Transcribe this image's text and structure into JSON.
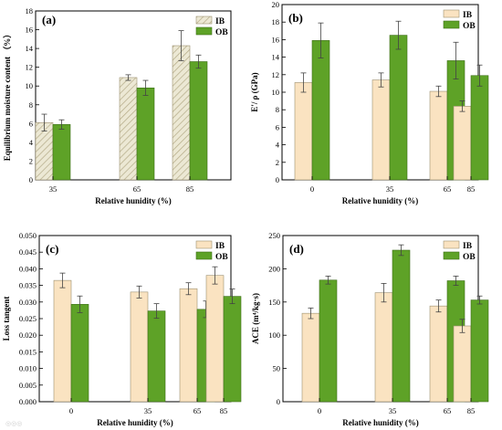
{
  "colors": {
    "IB": "#fae3c1",
    "OB": "#5ea227",
    "IB_stroke": "#9c9070",
    "OB_stroke": "#3c6d16",
    "hatch_fill": "#ece8d4"
  },
  "watermark": "◎◎◎",
  "chart_data": [
    {
      "type": "bar",
      "panel_label": "(a)",
      "title": "",
      "xlabel": "Relative hunidity (%)",
      "ylabel": "Equilibrium moisture content （%）",
      "ylim": [
        0,
        18
      ],
      "yticks": [
        0,
        2,
        4,
        6,
        8,
        10,
        12,
        14,
        16,
        18
      ],
      "ytick_labels": [
        "0",
        "2",
        "4",
        "6",
        "8",
        "10",
        "12",
        "14",
        "16",
        "18"
      ],
      "categories": [
        "35",
        "65",
        "85"
      ],
      "legend": "top-right",
      "IB_hatched": true,
      "series": [
        {
          "name": "IB",
          "values": [
            6.1,
            10.9,
            14.3
          ],
          "errors": [
            0.9,
            0.3,
            1.6
          ]
        },
        {
          "name": "OB",
          "values": [
            5.9,
            9.8,
            12.6
          ],
          "errors": [
            0.5,
            0.8,
            0.7
          ]
        }
      ]
    },
    {
      "type": "bar",
      "panel_label": "(b)",
      "title": "",
      "xlabel": "Relative hunidity (%)",
      "ylabel": "E'/ ρ (GPa)",
      "ylim": [
        0,
        20
      ],
      "yticks": [
        0,
        2,
        4,
        6,
        8,
        10,
        12,
        14,
        16,
        18,
        20
      ],
      "ytick_labels": [
        "0",
        "2",
        "4",
        "6",
        "8",
        "10",
        "12",
        "14",
        "16",
        "18",
        "20"
      ],
      "categories": [
        "0",
        "35",
        "65",
        "85"
      ],
      "legend": "top-right",
      "IB_hatched": false,
      "series": [
        {
          "name": "IB",
          "values": [
            11.1,
            11.4,
            10.1,
            8.4
          ],
          "errors": [
            1.1,
            0.8,
            0.6,
            0.6
          ]
        },
        {
          "name": "OB",
          "values": [
            15.9,
            16.5,
            13.6,
            11.9
          ],
          "errors": [
            2.0,
            1.6,
            2.1,
            1.2
          ]
        }
      ]
    },
    {
      "type": "bar",
      "panel_label": "(c)",
      "title": "",
      "xlabel": "Relative hunidity (%)",
      "ylabel": "Loss tangent",
      "ylim": [
        0,
        0.05
      ],
      "yticks": [
        0,
        0.005,
        0.01,
        0.015,
        0.02,
        0.025,
        0.03,
        0.035,
        0.04,
        0.045,
        0.05
      ],
      "ytick_labels": [
        "0.000",
        "0.005",
        "0.010",
        "0.015",
        "0.020",
        "0.025",
        "0.030",
        "0.035",
        "0.040",
        "0.045",
        "0.050"
      ],
      "categories": [
        "0",
        "35",
        "65",
        "85"
      ],
      "legend": "top-right",
      "IB_hatched": false,
      "series": [
        {
          "name": "IB",
          "values": [
            0.0365,
            0.033,
            0.034,
            0.038
          ],
          "errors": [
            0.0022,
            0.0018,
            0.0018,
            0.0026
          ]
        },
        {
          "name": "OB",
          "values": [
            0.0293,
            0.0273,
            0.0278,
            0.0317
          ],
          "errors": [
            0.0025,
            0.0022,
            0.0025,
            0.0022
          ]
        }
      ]
    },
    {
      "type": "bar",
      "panel_label": "(d)",
      "title": "",
      "xlabel": "Relative hunidity (%)",
      "ylabel": "ACE (m⁴/kg·s)",
      "ylim": [
        0,
        250
      ],
      "yticks": [
        0,
        50,
        100,
        150,
        200,
        250
      ],
      "ytick_labels": [
        "0",
        "50",
        "100",
        "150",
        "200",
        "250"
      ],
      "categories": [
        "0",
        "35",
        "65",
        "85"
      ],
      "legend": "top-right",
      "IB_hatched": false,
      "series": [
        {
          "name": "IB",
          "values": [
            133,
            164,
            144,
            114
          ],
          "errors": [
            8,
            14,
            9,
            10
          ]
        },
        {
          "name": "OB",
          "values": [
            183,
            228,
            182,
            153
          ],
          "errors": [
            6,
            8,
            7,
            6
          ]
        }
      ]
    }
  ]
}
